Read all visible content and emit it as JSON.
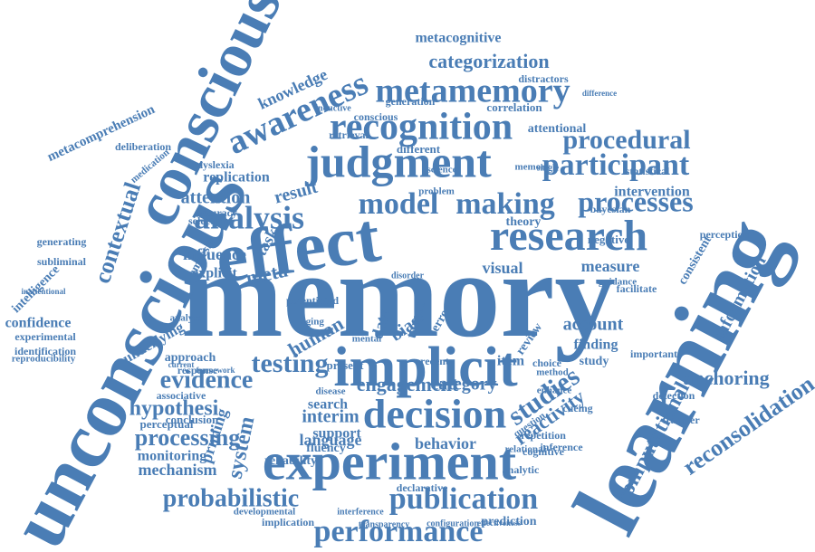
{
  "words": [
    "memory",
    "learning",
    "unconscious",
    "conscious",
    "effect",
    "implicit",
    "experiment",
    "judgment",
    "research",
    "decision",
    "recognition",
    "metamemory",
    "awareness",
    "analysis",
    "participant",
    "processes",
    "procedural",
    "model",
    "making",
    "performance",
    "publication",
    "probabilistic",
    "evidence",
    "testing",
    "reconsolidation",
    "computational",
    "studies",
    "reactivity",
    "processing",
    "hypothesi",
    "categorization",
    "contextual",
    "metacomprehension",
    "information",
    "anchoring",
    "system",
    "priming",
    "interim",
    "category",
    "language",
    "behavior",
    "mechanism",
    "monitoring",
    "metacognitive",
    "knowledge",
    "replication",
    "attention",
    "influence",
    "result",
    "explicit",
    "meta",
    "task",
    "visual",
    "measure",
    "theory",
    "negative",
    "intervention",
    "bayesian",
    "attentional",
    "correlation",
    "conscious",
    "inductive",
    "retrieval",
    "different",
    "dyslexia",
    "accuracy",
    "selection",
    "amnesia",
    "search",
    "support",
    "fluency",
    "reliability",
    "approach",
    "response",
    "underlying",
    "associative",
    "perceptual",
    "conclusion",
    "confidence",
    "experimental",
    "identification",
    "reproducibility",
    "inattentional",
    "intelligence",
    "subliminal",
    "generating",
    "deliberation",
    "medication",
    "engagement",
    "item",
    "choice",
    "finding",
    "account",
    "study",
    "human",
    "bias",
    "data",
    "target",
    "error",
    "review",
    "transfer",
    "repetition",
    "inference",
    "cognitive",
    "relational",
    "question",
    "analytic",
    "declarative",
    "prediction",
    "implication",
    "developmental",
    "configuration",
    "transparency",
    "effectiveness",
    "interference",
    "important",
    "detection",
    "facilitate",
    "guidance",
    "consistent",
    "perception",
    "statistical",
    "distractors",
    "generation",
    "difference",
    "potentiated",
    "cueing",
    "enhance",
    "method",
    "disease",
    "single",
    "memory",
    "science",
    "problem",
    "present",
    "mental",
    "recent",
    "aging",
    "current",
    "framework",
    "analyse",
    "disorder"
  ]
}
